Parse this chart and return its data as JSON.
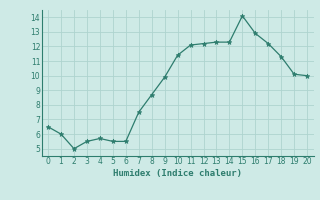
{
  "x": [
    0,
    1,
    2,
    3,
    4,
    5,
    6,
    7,
    8,
    9,
    10,
    11,
    12,
    13,
    14,
    15,
    16,
    17,
    18,
    19,
    20
  ],
  "y": [
    6.5,
    6.0,
    5.0,
    5.5,
    5.7,
    5.5,
    5.5,
    7.5,
    8.7,
    9.9,
    11.4,
    12.1,
    12.2,
    12.3,
    12.3,
    14.1,
    12.9,
    12.2,
    11.3,
    10.1,
    10.0
  ],
  "xlabel": "Humidex (Indice chaleur)",
  "ylim": [
    4.5,
    14.5
  ],
  "xlim": [
    -0.5,
    20.5
  ],
  "yticks": [
    5,
    6,
    7,
    8,
    9,
    10,
    11,
    12,
    13,
    14
  ],
  "xticks": [
    0,
    1,
    2,
    3,
    4,
    5,
    6,
    7,
    8,
    9,
    10,
    11,
    12,
    13,
    14,
    15,
    16,
    17,
    18,
    19,
    20
  ],
  "line_color": "#2e7d6e",
  "marker_color": "#2e7d6e",
  "bg_color": "#ceeae6",
  "grid_color": "#aed4cf",
  "xlabel_color": "#2e7d6e",
  "tick_color": "#2e7d6e"
}
